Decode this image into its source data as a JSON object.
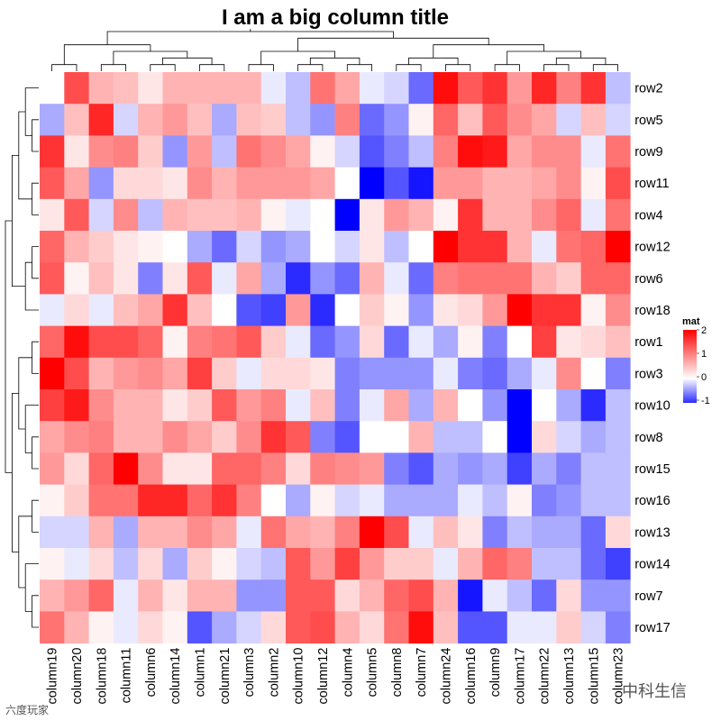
{
  "chart_data": {
    "type": "heatmap",
    "title": "I am a big column title",
    "rows": [
      "row2",
      "row5",
      "row9",
      "row11",
      "row4",
      "row12",
      "row6",
      "row18",
      "row1",
      "row3",
      "row10",
      "row8",
      "row15",
      "row16",
      "row13",
      "row14",
      "row7",
      "row17"
    ],
    "columns": [
      "column19",
      "column20",
      "column18",
      "column11",
      "column6",
      "column14",
      "column1",
      "column21",
      "column3",
      "column2",
      "column10",
      "column12",
      "column4",
      "column5",
      "column8",
      "column7",
      "column24",
      "column16",
      "column9",
      "column17",
      "column22",
      "column13",
      "column15",
      "column23"
    ],
    "values": [
      [
        0.0,
        1.4,
        0.6,
        0.5,
        0.2,
        0.6,
        0.6,
        0.6,
        0.6,
        -0.1,
        -0.3,
        1.1,
        0.7,
        -0.1,
        -0.2,
        -0.7,
        1.9,
        1.3,
        1.6,
        0.8,
        1.7,
        1.0,
        1.6,
        -0.3
      ],
      [
        -0.4,
        0.5,
        1.7,
        -0.2,
        0.6,
        0.8,
        0.5,
        -0.4,
        0.5,
        0.4,
        -0.3,
        -0.5,
        1.0,
        -0.7,
        -0.5,
        0.1,
        1.2,
        0.5,
        1.3,
        0.9,
        0.7,
        -0.2,
        0.5,
        -0.2
      ],
      [
        1.6,
        0.2,
        0.9,
        1.0,
        0.4,
        -0.5,
        0.8,
        -0.3,
        1.1,
        0.9,
        0.7,
        0.1,
        -0.2,
        -0.8,
        -0.6,
        -0.3,
        1.0,
        1.9,
        1.8,
        0.7,
        0.9,
        0.9,
        -0.1,
        1.1
      ],
      [
        1.3,
        0.7,
        -0.5,
        0.3,
        0.3,
        0.2,
        0.9,
        0.6,
        0.8,
        0.8,
        0.8,
        0.7,
        0.0,
        -1.2,
        -0.8,
        -1.1,
        0.8,
        0.8,
        0.6,
        0.6,
        0.7,
        0.9,
        0.1,
        1.4
      ],
      [
        0.2,
        1.3,
        -0.2,
        0.9,
        -0.3,
        0.6,
        0.5,
        0.5,
        0.6,
        0.1,
        -0.1,
        0.0,
        -1.2,
        0.2,
        0.8,
        0.6,
        0.1,
        1.6,
        0.6,
        0.6,
        0.9,
        1.2,
        -0.1,
        1.1
      ],
      [
        1.2,
        0.6,
        0.4,
        0.2,
        0.1,
        0.0,
        -0.4,
        -0.7,
        -0.2,
        -0.5,
        -0.4,
        0.0,
        -0.2,
        0.2,
        -0.3,
        0.0,
        2.2,
        1.6,
        1.6,
        0.6,
        -0.1,
        1.1,
        1.2,
        2.2
      ],
      [
        1.3,
        0.1,
        0.5,
        0.2,
        -0.6,
        0.2,
        1.3,
        -0.1,
        0.7,
        -0.4,
        -1.0,
        -0.5,
        -0.7,
        0.6,
        -0.1,
        -0.7,
        1.0,
        1.1,
        1.1,
        1.1,
        0.6,
        0.4,
        1.2,
        1.2
      ],
      [
        -0.1,
        0.3,
        -0.1,
        0.5,
        0.7,
        1.6,
        0.5,
        0.0,
        -0.8,
        -0.9,
        0.8,
        -1.0,
        0.0,
        0.4,
        0.1,
        -0.5,
        0.2,
        0.3,
        0.8,
        2.0,
        1.6,
        1.6,
        0.1,
        0.9
      ],
      [
        1.2,
        1.9,
        1.4,
        1.4,
        1.2,
        0.1,
        1.0,
        1.1,
        1.3,
        0.4,
        -0.1,
        -0.7,
        -0.5,
        0.3,
        -0.7,
        -0.1,
        -0.4,
        0.1,
        -0.6,
        0.0,
        1.5,
        0.2,
        0.3,
        0.5
      ],
      [
        2.1,
        1.4,
        0.6,
        0.8,
        0.9,
        0.7,
        1.5,
        0.4,
        -0.1,
        0.3,
        0.3,
        0.2,
        -0.6,
        -0.5,
        -0.5,
        -0.5,
        -0.1,
        -0.6,
        -0.7,
        -0.4,
        -0.1,
        0.9,
        0.0,
        -0.6
      ],
      [
        1.5,
        1.8,
        0.9,
        0.6,
        0.6,
        0.2,
        0.4,
        1.3,
        0.8,
        1.0,
        -0.1,
        0.5,
        -0.6,
        -0.1,
        0.7,
        -0.4,
        0.6,
        0.0,
        -0.5,
        -1.3,
        0.0,
        -0.4,
        -1.0,
        -0.3
      ],
      [
        0.7,
        0.9,
        1.0,
        0.6,
        0.6,
        0.9,
        0.7,
        0.4,
        0.9,
        1.6,
        1.3,
        -0.6,
        -0.8,
        0.0,
        0.0,
        0.6,
        -0.3,
        -0.3,
        0.0,
        -1.3,
        0.3,
        -0.2,
        -0.4,
        -0.3
      ],
      [
        0.8,
        0.3,
        1.2,
        2.1,
        0.9,
        0.2,
        0.2,
        1.2,
        1.2,
        1.0,
        0.3,
        1.0,
        0.9,
        0.8,
        -0.6,
        -0.8,
        -0.4,
        -0.5,
        -0.4,
        -0.9,
        -0.4,
        -0.6,
        -0.3,
        -0.3
      ],
      [
        0.1,
        0.4,
        1.1,
        1.1,
        1.7,
        1.7,
        1.2,
        1.6,
        1.0,
        0.0,
        -0.4,
        0.1,
        -0.2,
        -0.1,
        -0.4,
        -0.4,
        -0.4,
        -0.1,
        -0.3,
        0.1,
        -0.6,
        -0.5,
        -0.3,
        -0.3
      ],
      [
        -0.2,
        -0.2,
        0.6,
        -0.4,
        0.6,
        0.6,
        0.9,
        0.7,
        -0.1,
        1.1,
        0.7,
        0.6,
        1.0,
        2.1,
        1.4,
        -0.1,
        0.5,
        0.2,
        -0.6,
        -0.3,
        -0.4,
        -0.4,
        -0.7,
        0.3
      ],
      [
        0.1,
        -0.1,
        0.3,
        -0.3,
        0.3,
        -0.4,
        0.4,
        0.1,
        -0.2,
        -0.3,
        1.3,
        0.8,
        1.5,
        0.8,
        0.4,
        0.4,
        -0.1,
        0.6,
        1.2,
        1.0,
        -0.3,
        -0.3,
        -0.7,
        -0.9
      ],
      [
        0.6,
        0.8,
        1.2,
        -0.1,
        0.6,
        0.2,
        0.6,
        0.6,
        -0.5,
        -0.5,
        1.3,
        1.3,
        0.3,
        0.6,
        1.2,
        1.4,
        0.6,
        -1.1,
        -0.1,
        -0.3,
        -0.7,
        0.3,
        -0.5,
        -0.5
      ],
      [
        1.1,
        0.6,
        0.1,
        -0.1,
        0.3,
        0.1,
        -0.8,
        -0.4,
        -0.2,
        0.3,
        1.3,
        1.4,
        0.6,
        0.3,
        1.1,
        1.9,
        0.5,
        -0.8,
        -0.8,
        -0.1,
        -0.1,
        0.4,
        -0.2,
        -0.6
      ]
    ],
    "legend": {
      "title": "mat",
      "ticks": [
        2,
        1,
        0,
        -1
      ],
      "placement": "right"
    },
    "colors": {
      "low": "#0000ff",
      "mid": "#ffffff",
      "high": "#ff0000"
    }
  },
  "watermarks": {
    "left": "六度玩家",
    "right": "中科生信"
  }
}
